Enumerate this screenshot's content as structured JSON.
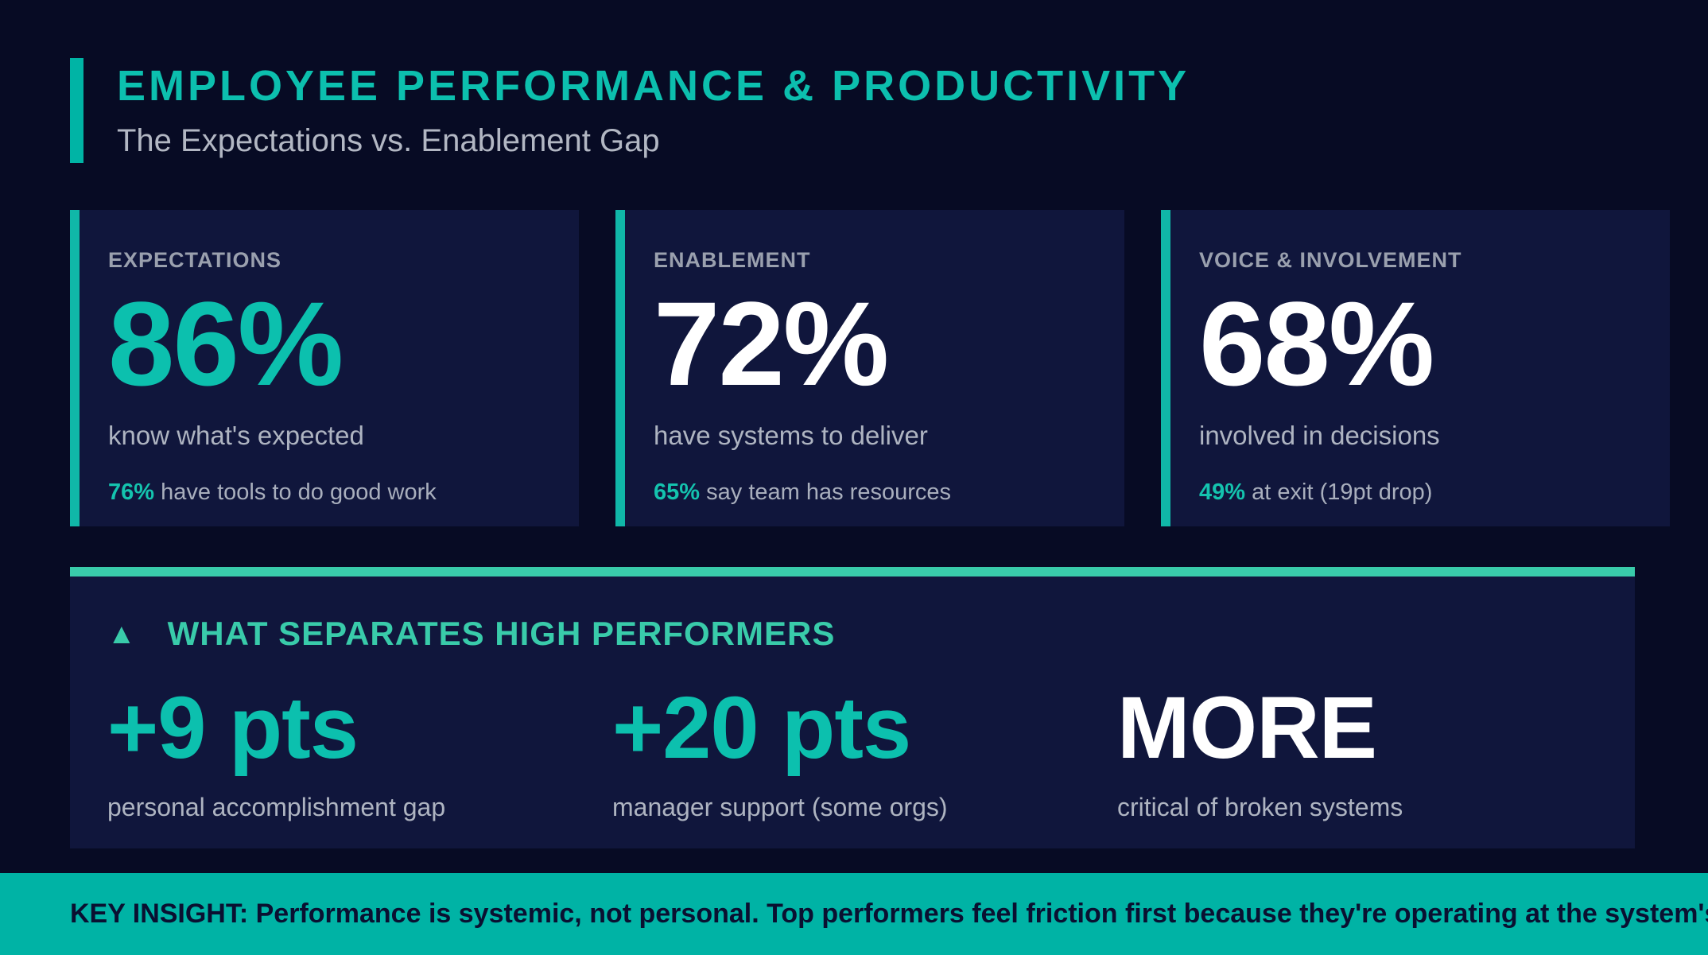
{
  "colors": {
    "background": "#070b24",
    "card_background": "#10163c",
    "accent_teal": "#00b4a5",
    "accent_teal_bright": "#39cbaa",
    "teal_text": "#0cc0ae",
    "label_gray": "#9aa0ae",
    "body_gray": "#aeb4c1",
    "white": "#ffffff",
    "banner_text": "#0a1031"
  },
  "icons": {
    "triangle": "▲"
  },
  "header": {
    "title": "EMPLOYEE PERFORMANCE & PRODUCTIVITY",
    "subtitle": "The Expectations vs. Enablement Gap"
  },
  "cards": [
    {
      "label": "EXPECTATIONS",
      "value": "86%",
      "value_color": "teal",
      "description": "know what's expected",
      "substat_value": "76%",
      "substat_text": "have tools to do good work"
    },
    {
      "label": "ENABLEMENT",
      "value": "72%",
      "value_color": "white",
      "description": "have systems to deliver",
      "substat_value": "65%",
      "substat_text": "say team has resources"
    },
    {
      "label": "VOICE & INVOLVEMENT",
      "value": "68%",
      "value_color": "white",
      "description": "involved in decisions",
      "substat_value": "49%",
      "substat_text": "at exit (19pt drop)"
    }
  ],
  "highlights": {
    "heading": "WHAT SEPARATES HIGH PERFORMERS",
    "items": [
      {
        "value": "+9 pts",
        "value_color": "teal",
        "label": "personal accomplishment gap"
      },
      {
        "value": "+20 pts",
        "value_color": "teal",
        "label": "manager support (some orgs)"
      },
      {
        "value": "MORE",
        "value_color": "white",
        "label": "critical of broken systems"
      }
    ]
  },
  "banner": {
    "text": "KEY INSIGHT: Performance is systemic, not personal. Top performers feel friction first because they're operating at the system's edge."
  }
}
